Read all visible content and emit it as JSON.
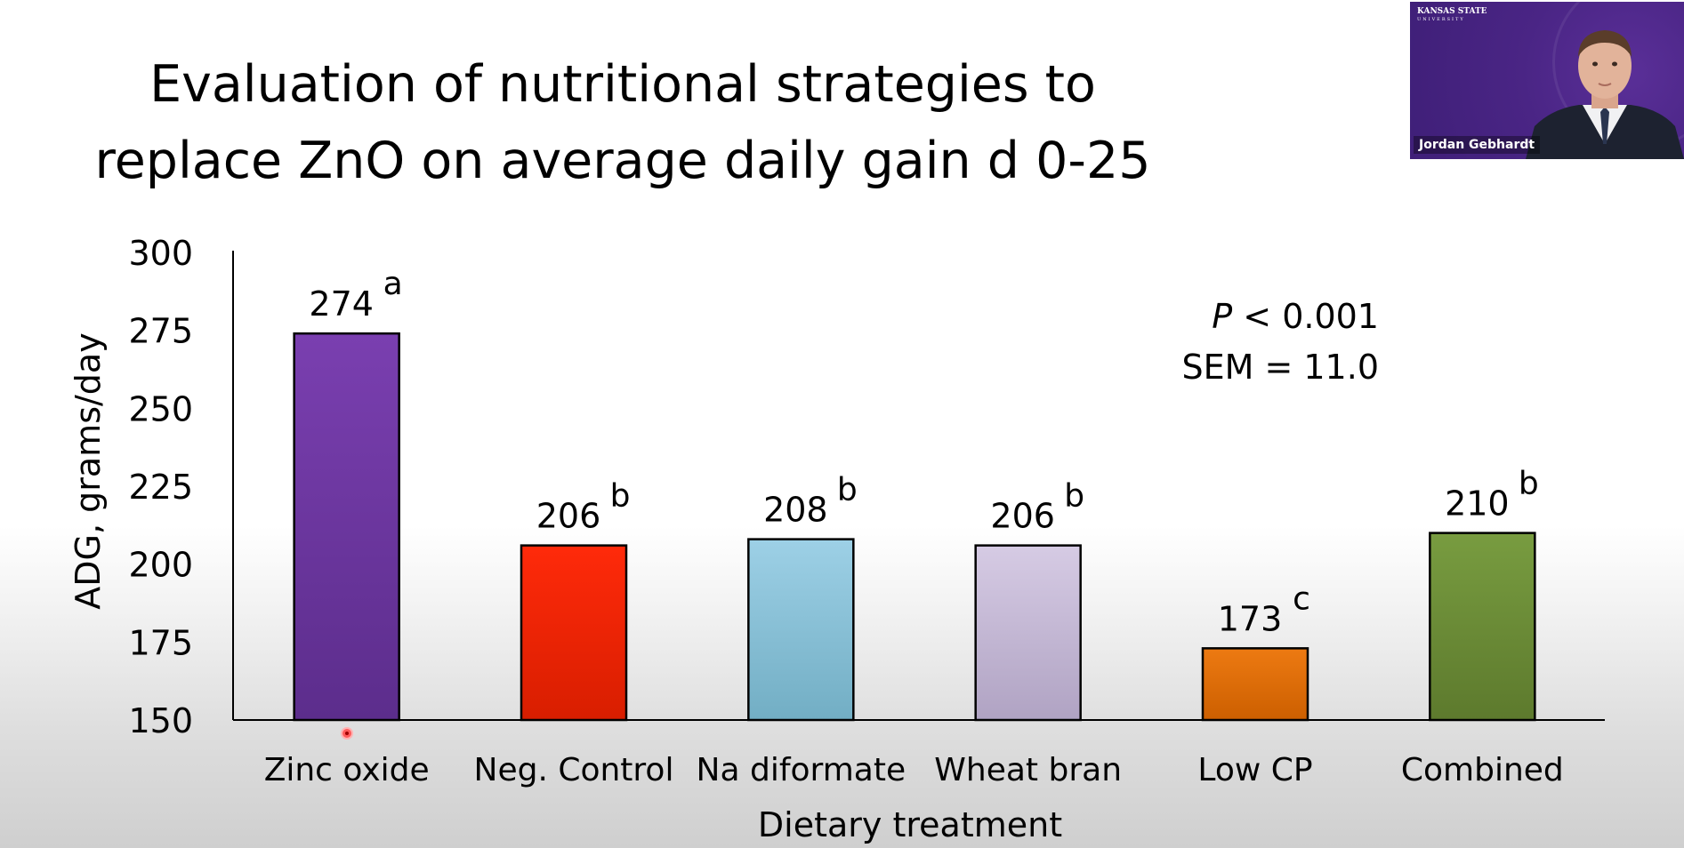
{
  "slide": {
    "title_line1": "Evaluation of nutritional strategies to",
    "title_line2": "replace ZnO on average daily gain d 0-25"
  },
  "stats": {
    "p_symbol": "P",
    "p_value": " < 0.001",
    "sem": "SEM = 11.0"
  },
  "webcam": {
    "logo_main": "KANSAS STATE",
    "logo_sub": "UNIVERSITY",
    "name": "Jordan Gebhardt"
  },
  "chart_data": {
    "type": "bar",
    "title": "",
    "xlabel": "Dietary treatment",
    "ylabel": "ADG, grams/day",
    "ylim": [
      150,
      300
    ],
    "yticks": [
      150,
      175,
      200,
      225,
      250,
      275,
      300
    ],
    "categories": [
      "Zinc oxide",
      "Neg. Control",
      "Na diformate",
      "Wheat bran",
      "Low CP",
      "Combined"
    ],
    "values": [
      274,
      206,
      208,
      206,
      173,
      210
    ],
    "value_labels": [
      "274",
      "206",
      "208",
      "206",
      "173",
      "210"
    ],
    "significance_letters": [
      "a",
      "b",
      "b",
      "b",
      "c",
      "b"
    ],
    "colors": [
      [
        "#7a3fb0",
        "#5c2d8c"
      ],
      [
        "#ff2a0a",
        "#d81e00"
      ],
      [
        "#9dd0e6",
        "#72aec4"
      ],
      [
        "#d6cbe4",
        "#b0a3c3"
      ],
      [
        "#ed7a12",
        "#cc5f00"
      ],
      [
        "#789c40",
        "#5d7a2d"
      ]
    ],
    "grid": false,
    "legend": "none"
  }
}
